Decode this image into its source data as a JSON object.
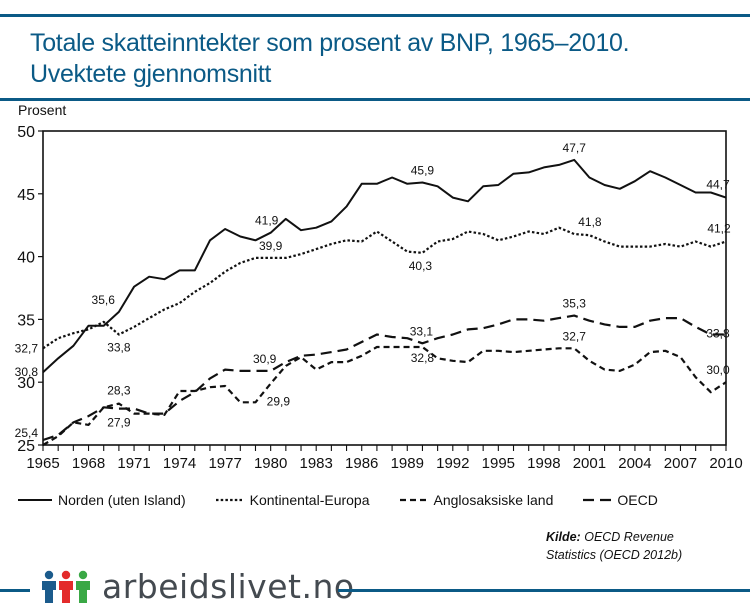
{
  "header": {
    "title_line1": "Totale skatteinntekter som prosent av BNP, 1965–2010.",
    "title_line2": "Uvektete gjennomsnitt"
  },
  "legend": [
    {
      "name": "Norden (uten Island)",
      "style": "solid"
    },
    {
      "name": "Kontinental-Europa",
      "style": "dotted"
    },
    {
      "name": "Anglosaksiske land",
      "style": "dashed"
    },
    {
      "name": "OECD",
      "style": "longdash"
    }
  ],
  "source": {
    "label": "Kilde:",
    "text_line1": "OECD Revenue",
    "text_line2": "Statistics (OECD 2012b)"
  },
  "footer": {
    "logo_text": "arbeidslivet.no",
    "logo_colors": [
      "#1b5b8c",
      "#e32b2b",
      "#3aa845"
    ]
  },
  "colors": {
    "brand_blue": "#0b5a86",
    "line": "#111111"
  },
  "chart_data": {
    "type": "line",
    "title": "Totale skatteinntekter som prosent av BNP, 1965–2010. Uvektete gjennomsnitt",
    "ylabel": "Prosent",
    "xlabel": "",
    "ylim": [
      25,
      50
    ],
    "xlim": [
      1965,
      2010
    ],
    "yticks": [
      25,
      30,
      35,
      40,
      45,
      50
    ],
    "xticks": [
      "1965",
      "1968",
      "1971",
      "1974",
      "1977",
      "1980",
      "1983",
      "1986",
      "1989",
      "1992",
      "1995",
      "1998",
      "2001",
      "2004",
      "2007",
      "2010"
    ],
    "grid": false,
    "legend_position": "bottom",
    "x": [
      1965,
      1966,
      1967,
      1968,
      1969,
      1970,
      1971,
      1972,
      1973,
      1974,
      1975,
      1976,
      1977,
      1978,
      1979,
      1980,
      1981,
      1982,
      1983,
      1984,
      1985,
      1986,
      1987,
      1988,
      1989,
      1990,
      1991,
      1992,
      1993,
      1994,
      1995,
      1996,
      1997,
      1998,
      1999,
      2000,
      2001,
      2002,
      2003,
      2004,
      2005,
      2006,
      2007,
      2008,
      2009,
      2010
    ],
    "series": [
      {
        "name": "Norden (uten Island)",
        "style": "solid",
        "values": [
          30.8,
          31.9,
          32.9,
          34.5,
          34.5,
          35.6,
          37.6,
          38.4,
          38.2,
          38.9,
          38.9,
          41.3,
          42.2,
          41.6,
          41.3,
          41.9,
          43.0,
          42.1,
          42.3,
          42.8,
          44.0,
          45.8,
          45.8,
          46.3,
          45.8,
          45.9,
          45.6,
          44.7,
          44.4,
          45.6,
          45.7,
          46.6,
          46.7,
          47.1,
          47.3,
          47.7,
          46.3,
          45.7,
          45.4,
          46.0,
          46.8,
          46.3,
          45.7,
          45.1,
          45.1,
          44.7
        ]
      },
      {
        "name": "Kontinental-Europa",
        "style": "dotted",
        "values": [
          32.7,
          33.5,
          33.9,
          34.2,
          34.8,
          33.8,
          34.4,
          35.1,
          35.8,
          36.3,
          37.2,
          37.9,
          38.8,
          39.5,
          39.9,
          39.9,
          39.9,
          40.2,
          40.6,
          41.0,
          41.3,
          41.2,
          42.0,
          41.2,
          40.4,
          40.3,
          41.2,
          41.4,
          42.0,
          41.8,
          41.3,
          41.6,
          42.0,
          41.8,
          42.3,
          41.8,
          41.7,
          41.2,
          40.8,
          40.8,
          40.8,
          41.0,
          40.8,
          41.2,
          40.8,
          41.2
        ]
      },
      {
        "name": "Anglosaksiske land",
        "style": "dashed",
        "values": [
          25.0,
          25.7,
          26.8,
          26.6,
          28.0,
          28.3,
          27.5,
          27.5,
          27.4,
          29.3,
          29.3,
          29.6,
          29.7,
          28.4,
          28.4,
          29.9,
          31.3,
          32.0,
          31.0,
          31.6,
          31.6,
          32.1,
          32.8,
          32.8,
          32.8,
          32.8,
          31.9,
          31.7,
          31.6,
          32.5,
          32.5,
          32.4,
          32.5,
          32.6,
          32.7,
          32.7,
          31.7,
          31.0,
          30.9,
          31.4,
          32.4,
          32.5,
          32.0,
          30.4,
          29.2,
          30.0
        ]
      },
      {
        "name": "OECD",
        "style": "longdash",
        "values": [
          25.4,
          25.8,
          26.8,
          27.3,
          28.0,
          27.9,
          27.9,
          27.5,
          27.5,
          28.5,
          29.2,
          30.3,
          31.0,
          30.9,
          30.9,
          30.9,
          31.6,
          32.1,
          32.2,
          32.4,
          32.6,
          33.2,
          33.8,
          33.6,
          33.5,
          33.1,
          33.5,
          33.8,
          34.2,
          34.3,
          34.6,
          35.0,
          35.0,
          34.9,
          35.1,
          35.3,
          34.9,
          34.6,
          34.4,
          34.4,
          34.9,
          35.1,
          35.1,
          34.4,
          33.8,
          33.8
        ]
      }
    ],
    "annotations": [
      {
        "series": "Norden (uten Island)",
        "x": 1965,
        "label": "30,8"
      },
      {
        "series": "Norden (uten Island)",
        "x": 1970,
        "label": "35,6"
      },
      {
        "series": "Norden (uten Island)",
        "x": 1980,
        "label": "41,9"
      },
      {
        "series": "Norden (uten Island)",
        "x": 1990,
        "label": "45,9"
      },
      {
        "series": "Norden (uten Island)",
        "x": 2000,
        "label": "47,7"
      },
      {
        "series": "Norden (uten Island)",
        "x": 2010,
        "label": "44,7"
      },
      {
        "series": "Kontinental-Europa",
        "x": 1965,
        "label": "32,7"
      },
      {
        "series": "Kontinental-Europa",
        "x": 1970,
        "label": "33,8"
      },
      {
        "series": "Kontinental-Europa",
        "x": 1980,
        "label": "39,9"
      },
      {
        "series": "Kontinental-Europa",
        "x": 1990,
        "label": "40,3"
      },
      {
        "series": "Kontinental-Europa",
        "x": 2000,
        "label": "41,8"
      },
      {
        "series": "Kontinental-Europa",
        "x": 2010,
        "label": "41,2"
      },
      {
        "series": "Anglosaksiske land",
        "x": 1970,
        "label": "28,3"
      },
      {
        "series": "Anglosaksiske land",
        "x": 1980,
        "label": "29,9"
      },
      {
        "series": "Anglosaksiske land",
        "x": 1990,
        "label": "32,8"
      },
      {
        "series": "Anglosaksiske land",
        "x": 2000,
        "label": "32,7"
      },
      {
        "series": "Anglosaksiske land",
        "x": 2010,
        "label": "30,0"
      },
      {
        "series": "OECD",
        "x": 1965,
        "label": "25,4"
      },
      {
        "series": "OECD",
        "x": 1970,
        "label": "27,9"
      },
      {
        "series": "OECD",
        "x": 1980,
        "label": "30,9"
      },
      {
        "series": "OECD",
        "x": 1990,
        "label": "33,1"
      },
      {
        "series": "OECD",
        "x": 2000,
        "label": "35,3"
      },
      {
        "series": "OECD",
        "x": 2010,
        "label": "33,8"
      }
    ]
  }
}
